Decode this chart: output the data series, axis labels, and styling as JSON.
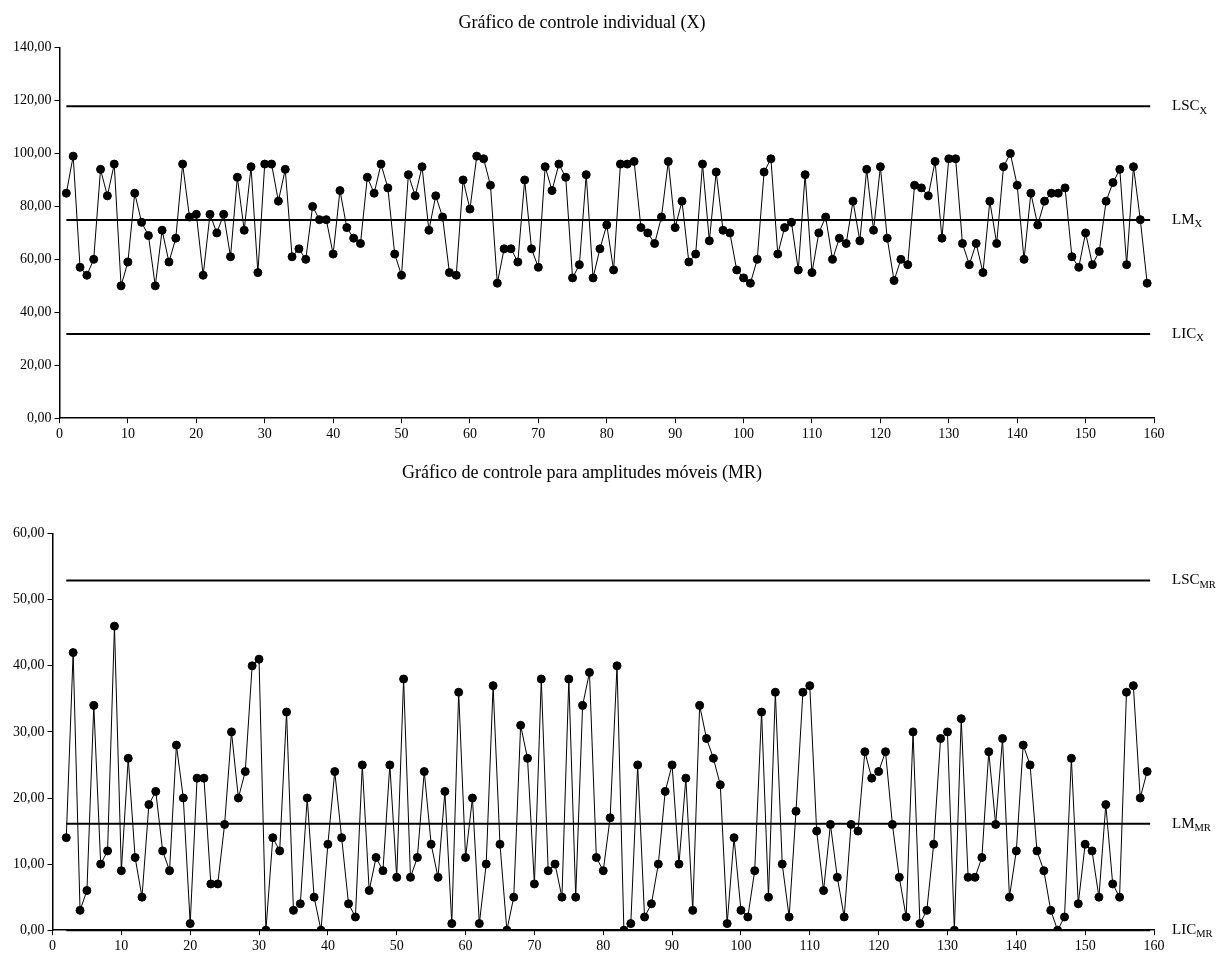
{
  "chart_data": [
    {
      "type": "line",
      "title": "Gráfico de controle individual (X)",
      "color": "#000000",
      "marker": "circle",
      "x": [
        1,
        2,
        3,
        4,
        5,
        6,
        7,
        8,
        9,
        10,
        11,
        12,
        13,
        14,
        15,
        16,
        17,
        18,
        19,
        20,
        21,
        22,
        23,
        24,
        25,
        26,
        27,
        28,
        29,
        30,
        31,
        32,
        33,
        34,
        35,
        36,
        37,
        38,
        39,
        40,
        41,
        42,
        43,
        44,
        45,
        46,
        47,
        48,
        49,
        50,
        51,
        52,
        53,
        54,
        55,
        56,
        57,
        58,
        59,
        60,
        61,
        62,
        63,
        64,
        65,
        66,
        67,
        68,
        69,
        70,
        71,
        72,
        73,
        74,
        75,
        76,
        77,
        78,
        79,
        80,
        81,
        82,
        83,
        84,
        85,
        86,
        87,
        88,
        89,
        90,
        91,
        92,
        93,
        94,
        95,
        96,
        97,
        98,
        99,
        100,
        101,
        102,
        103,
        104,
        105,
        106,
        107,
        108,
        109,
        110,
        111,
        112,
        113,
        114,
        115,
        116,
        117,
        118,
        119,
        120,
        121,
        122,
        123,
        124,
        125,
        126,
        127,
        128,
        129,
        130,
        131,
        132,
        133,
        134,
        135,
        136,
        137,
        138,
        139,
        140,
        141,
        142,
        143,
        144,
        145,
        146,
        147,
        148,
        149,
        150,
        151,
        152,
        153,
        154,
        155,
        156,
        157,
        158,
        159
      ],
      "values": [
        85,
        99,
        57,
        54,
        60,
        94,
        84,
        96,
        50,
        59,
        85,
        74,
        69,
        50,
        71,
        59,
        68,
        96,
        76,
        77,
        54,
        77,
        70,
        77,
        61,
        91,
        71,
        95,
        55,
        96,
        96,
        82,
        94,
        61,
        64,
        60,
        80,
        75,
        75,
        62,
        86,
        72,
        68,
        66,
        91,
        85,
        96,
        87,
        62,
        54,
        92,
        84,
        95,
        71,
        84,
        76,
        55,
        54,
        90,
        79,
        99,
        98,
        88,
        51,
        64,
        64,
        59,
        90,
        64,
        57,
        95,
        86,
        96,
        91,
        53,
        58,
        92,
        53,
        64,
        73,
        56,
        96,
        96,
        97,
        72,
        70,
        66,
        76,
        97,
        72,
        82,
        59,
        62,
        96,
        67,
        93,
        71,
        70,
        56,
        53,
        51,
        60,
        93,
        98,
        62,
        72,
        74,
        56,
        92,
        55,
        70,
        76,
        60,
        68,
        66,
        82,
        67,
        94,
        71,
        95,
        68,
        52,
        60,
        58,
        88,
        87,
        84,
        97,
        68,
        98,
        98,
        66,
        58,
        66,
        55,
        82,
        66,
        95,
        100,
        88,
        60,
        85,
        73,
        82,
        85,
        85,
        87,
        61,
        57,
        70,
        58,
        63,
        82,
        89,
        94,
        58,
        95,
        75,
        51
      ],
      "xlim": [
        0,
        160
      ],
      "xticks": [
        0,
        10,
        20,
        30,
        40,
        50,
        60,
        70,
        80,
        90,
        100,
        110,
        120,
        130,
        140,
        150,
        160
      ],
      "ylim": [
        0,
        140
      ],
      "yticks": [
        {
          "value": 0,
          "label": "0,00"
        },
        {
          "value": 20,
          "label": "20,00"
        },
        {
          "value": 40,
          "label": "40,00"
        },
        {
          "value": 60,
          "label": "60,00"
        },
        {
          "value": 80,
          "label": "80,00"
        },
        {
          "value": 100,
          "label": "100,00"
        },
        {
          "value": 120,
          "label": "120,00"
        },
        {
          "value": 140,
          "label": "140,00"
        }
      ],
      "ref_lines": [
        {
          "axis": "y",
          "value": 117.8,
          "label": "LSC$_{X}$"
        },
        {
          "axis": "y",
          "value": 74.9,
          "label": "LM$_{X}$"
        },
        {
          "axis": "y",
          "value": 31.8,
          "label": "LIC$_{X}$"
        }
      ]
    },
    {
      "type": "line",
      "title": "Gráfico de controle para amplitudes móveis (MR)",
      "color": "#000000",
      "marker": "circle",
      "x": [
        2,
        3,
        4,
        5,
        6,
        7,
        8,
        9,
        10,
        11,
        12,
        13,
        14,
        15,
        16,
        17,
        18,
        19,
        20,
        21,
        22,
        23,
        24,
        25,
        26,
        27,
        28,
        29,
        30,
        31,
        32,
        33,
        34,
        35,
        36,
        37,
        38,
        39,
        40,
        41,
        42,
        43,
        44,
        45,
        46,
        47,
        48,
        49,
        50,
        51,
        52,
        53,
        54,
        55,
        56,
        57,
        58,
        59,
        60,
        61,
        62,
        63,
        64,
        65,
        66,
        67,
        68,
        69,
        70,
        71,
        72,
        73,
        74,
        75,
        76,
        77,
        78,
        79,
        80,
        81,
        82,
        83,
        84,
        85,
        86,
        87,
        88,
        89,
        90,
        91,
        92,
        93,
        94,
        95,
        96,
        97,
        98,
        99,
        100,
        101,
        102,
        103,
        104,
        105,
        106,
        107,
        108,
        109,
        110,
        111,
        112,
        113,
        114,
        115,
        116,
        117,
        118,
        119,
        120,
        121,
        122,
        123,
        124,
        125,
        126,
        127,
        128,
        129,
        130,
        131,
        132,
        133,
        134,
        135,
        136,
        137,
        138,
        139,
        140,
        141,
        142,
        143,
        144,
        145,
        146,
        147,
        148,
        149,
        150,
        151,
        152,
        153,
        154,
        155,
        156,
        157,
        158,
        159
      ],
      "values": [
        14,
        42,
        3,
        6,
        34,
        10,
        12,
        46,
        9,
        26,
        11,
        5,
        19,
        21,
        12,
        9,
        28,
        20,
        1,
        23,
        23,
        7,
        7,
        16,
        30,
        20,
        24,
        40,
        41,
        0,
        14,
        12,
        33,
        3,
        4,
        20,
        5,
        0,
        13,
        24,
        14,
        4,
        2,
        25,
        6,
        11,
        9,
        25,
        8,
        38,
        8,
        11,
        24,
        13,
        8,
        21,
        1,
        36,
        11,
        20,
        1,
        10,
        37,
        13,
        0,
        5,
        31,
        26,
        7,
        38,
        9,
        10,
        5,
        38,
        5,
        34,
        39,
        11,
        9,
        17,
        40,
        0,
        1,
        25,
        2,
        4,
        10,
        21,
        25,
        10,
        23,
        3,
        34,
        29,
        26,
        22,
        1,
        14,
        3,
        2,
        9,
        33,
        5,
        36,
        10,
        2,
        18,
        36,
        37,
        15,
        6,
        16,
        8,
        2,
        16,
        15,
        27,
        23,
        24,
        27,
        16,
        8,
        2,
        30,
        1,
        3,
        13,
        29,
        30,
        0,
        32,
        8,
        8,
        11,
        27,
        16,
        29,
        5,
        12,
        28,
        25,
        12,
        9,
        3,
        0,
        2,
        26,
        4,
        13,
        12,
        5,
        19,
        7,
        5,
        36,
        37,
        20,
        24
      ],
      "xlim": [
        0,
        160
      ],
      "xticks": [
        0,
        10,
        20,
        30,
        40,
        50,
        60,
        70,
        80,
        90,
        100,
        110,
        120,
        130,
        140,
        150,
        160
      ],
      "ylim": [
        0,
        60
      ],
      "yticks": [
        {
          "value": 0,
          "label": "0,00"
        },
        {
          "value": 10,
          "label": "10,00"
        },
        {
          "value": 20,
          "label": "20,00"
        },
        {
          "value": 30,
          "label": "30,00"
        },
        {
          "value": 40,
          "label": "40,00"
        },
        {
          "value": 50,
          "label": "50,00"
        },
        {
          "value": 60,
          "label": "60,00"
        }
      ],
      "ref_lines": [
        {
          "axis": "y",
          "value": 52.9,
          "label": "LSC$_{MR}$"
        },
        {
          "axis": "y",
          "value": 16.1,
          "label": "LM$_{MR}$"
        },
        {
          "axis": "y",
          "value": 0,
          "label": "LIC$_{MR}$"
        }
      ]
    }
  ]
}
